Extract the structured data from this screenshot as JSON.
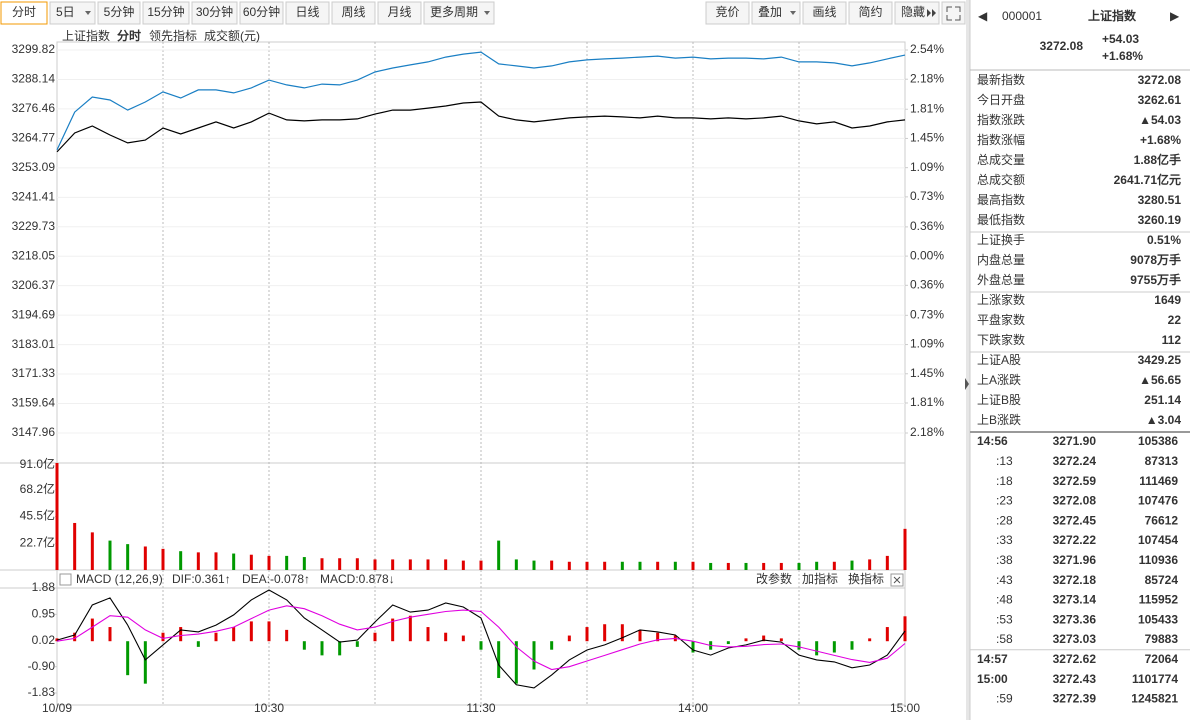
{
  "toolbar": {
    "periods": [
      "分时",
      "5日",
      "5分钟",
      "15分钟",
      "30分钟",
      "60分钟",
      "日线",
      "周线",
      "月线",
      "更多周期"
    ],
    "tools": [
      "竞价",
      "叠加",
      "画线",
      "简约",
      "隐藏"
    ]
  },
  "chart_data": [
    {
      "type": "line",
      "title": "上证指数",
      "volume_label": "成交额(元)",
      "series": [
        {
          "name": "分时",
          "color": "#000000",
          "values": [
            3259.4,
            3266.9,
            3269.7,
            3266.1,
            3263.0,
            3264.1,
            3268.9,
            3266.5,
            3268.9,
            3271.3,
            3268.9,
            3271.3,
            3274.8,
            3272.1,
            3271.7,
            3272.1,
            3272.1,
            3272.5,
            3274.4,
            3276.0,
            3276.0,
            3276.8,
            3277.6,
            3278.8,
            3279.2,
            3273.6,
            3272.1,
            3271.3,
            3272.1,
            3272.9,
            3273.3,
            3273.6,
            3273.3,
            3272.9,
            3273.6,
            3272.9,
            3272.9,
            3272.5,
            3272.9,
            3272.5,
            3272.9,
            3273.6,
            3271.7,
            3270.5,
            3271.3,
            3268.9,
            3269.7,
            3271.3,
            3272.1
          ]
        },
        {
          "name": "领先指标",
          "color": "#1a7fc4",
          "values": [
            3260.2,
            3275.2,
            3281.2,
            3280.0,
            3276.0,
            3279.2,
            3283.2,
            3280.8,
            3284.0,
            3284.0,
            3282.8,
            3284.8,
            3287.9,
            3286.0,
            3284.8,
            3286.3,
            3286.0,
            3287.9,
            3291.1,
            3292.7,
            3293.9,
            3295.1,
            3297.0,
            3298.2,
            3299.0,
            3294.3,
            3293.5,
            3292.7,
            3293.5,
            3295.1,
            3295.9,
            3296.3,
            3296.6,
            3297.0,
            3297.4,
            3296.6,
            3297.0,
            3296.3,
            3296.6,
            3296.6,
            3296.3,
            3297.0,
            3295.1,
            3295.1,
            3294.7,
            3293.5,
            3294.7,
            3296.3,
            3297.8
          ]
        }
      ],
      "ylim": [
        3147.96,
        3299.82
      ],
      "yticks": [
        3299.82,
        3288.14,
        3276.46,
        3264.77,
        3253.09,
        3241.41,
        3229.73,
        3218.05,
        3206.37,
        3194.69,
        3183.01,
        3171.33,
        3159.64,
        3147.96
      ],
      "y2lim": [
        -2.18,
        2.54
      ],
      "y2ticks": [
        {
          "value": 2.54,
          "label": "2.54%"
        },
        {
          "value": 2.18,
          "label": "2.18%"
        },
        {
          "value": 1.81,
          "label": "1.81%"
        },
        {
          "value": 1.45,
          "label": "1.45%"
        },
        {
          "value": 1.09,
          "label": "1.09%"
        },
        {
          "value": 0.73,
          "label": "0.73%"
        },
        {
          "value": 0.36,
          "label": "0.36%"
        },
        {
          "value": 0,
          "label": "0.00%"
        },
        {
          "value": -0.36,
          "label": "0.36%"
        },
        {
          "value": -0.73,
          "label": "0.73%"
        },
        {
          "value": -1.09,
          "label": "1.09%"
        },
        {
          "value": -1.45,
          "label": "1.45%"
        },
        {
          "value": -1.81,
          "label": "1.81%"
        },
        {
          "value": -2.18,
          "label": "2.18%"
        }
      ]
    },
    {
      "type": "bar",
      "color": "#e00000",
      "values": [
        91.0,
        40,
        32,
        25,
        22,
        20,
        18,
        16,
        15,
        15,
        14,
        13,
        12,
        12,
        11,
        10,
        10,
        10,
        9,
        9,
        9,
        9,
        9,
        8,
        8,
        25,
        9,
        8,
        8,
        7,
        7,
        7,
        7,
        7,
        7,
        7,
        7,
        6,
        6,
        6,
        6,
        6,
        6,
        7,
        7,
        8,
        9,
        12,
        35
      ],
      "ylim": [
        0,
        91.0
      ],
      "yticks": [
        {
          "value": 91.0,
          "label": "91.0亿"
        },
        {
          "value": 68.2,
          "label": "68.2亿"
        },
        {
          "value": 45.5,
          "label": "45.5亿"
        },
        {
          "value": 22.7,
          "label": "22.7亿"
        }
      ]
    },
    {
      "type": "macd",
      "title": "MACD (12,26,9)",
      "readouts": [
        "DIF:0.361↑",
        "DEA:-0.078↑",
        "MACD:0.878↓"
      ],
      "actions": [
        "改参数",
        "加指标",
        "换指标"
      ],
      "categories": [
        "10/09",
        null,
        null,
        null,
        null,
        null,
        null,
        null,
        null,
        null,
        null,
        null,
        "10:30",
        null,
        null,
        null,
        null,
        null,
        null,
        null,
        null,
        null,
        null,
        null,
        "11:30",
        null,
        null,
        null,
        null,
        null,
        null,
        null,
        null,
        null,
        null,
        null,
        "14:00",
        null,
        null,
        null,
        null,
        null,
        null,
        null,
        null,
        null,
        null,
        null,
        "15:00"
      ],
      "series": [
        {
          "name": "DIF",
          "color": "#000000",
          "values": [
            0.04,
            0.22,
            1.28,
            1.53,
            0.57,
            -0.66,
            -0.13,
            0.4,
            0.33,
            0.57,
            0.93,
            1.46,
            1.81,
            1.46,
            0.82,
            0.4,
            -0.03,
            0.04,
            0.68,
            1.28,
            1.03,
            1.1,
            1.35,
            1.21,
            0.82,
            -0.84,
            -1.54,
            -1.65,
            -1.19,
            -0.66,
            -0.31,
            -0.13,
            0.12,
            0.4,
            0.33,
            0.22,
            -0.31,
            -0.49,
            -0.24,
            -0.13,
            0.04,
            -0.03,
            -0.49,
            -0.66,
            -0.73,
            -0.94,
            -0.84,
            -0.49,
            0.36
          ]
        },
        {
          "name": "DEA",
          "color": "#e000e0",
          "values": [
            0.0,
            0.1,
            0.5,
            0.9,
            0.85,
            0.4,
            0.1,
            0.2,
            0.25,
            0.35,
            0.5,
            0.8,
            1.1,
            1.25,
            1.15,
            0.9,
            0.6,
            0.4,
            0.5,
            0.7,
            0.85,
            0.95,
            1.05,
            1.1,
            1.05,
            0.5,
            -0.2,
            -0.7,
            -1.0,
            -0.9,
            -0.7,
            -0.5,
            -0.3,
            -0.1,
            0.05,
            0.1,
            0.0,
            -0.15,
            -0.2,
            -0.18,
            -0.12,
            -0.1,
            -0.2,
            -0.35,
            -0.5,
            -0.65,
            -0.75,
            -0.6,
            -0.08
          ]
        },
        {
          "name": "MACD",
          "type": "bar",
          "values": [
            0.1,
            0.3,
            0.8,
            0.5,
            -1.2,
            -1.5,
            0.3,
            0.5,
            -0.2,
            0.3,
            0.5,
            0.7,
            0.7,
            0.4,
            -0.3,
            -0.5,
            -0.5,
            -0.2,
            0.3,
            0.8,
            0.9,
            0.5,
            0.3,
            0.2,
            -0.3,
            -1.3,
            -1.5,
            -1.0,
            -0.3,
            0.2,
            0.5,
            0.6,
            0.6,
            0.4,
            0.3,
            0.2,
            -0.4,
            -0.3,
            -0.1,
            0.1,
            0.2,
            0.1,
            -0.3,
            -0.5,
            -0.4,
            -0.3,
            0.1,
            0.5,
            0.88
          ]
        }
      ],
      "ylim": [
        -1.83,
        1.88
      ],
      "yticks": [
        1.88,
        0.95,
        0.02,
        {
          "value": -0.9,
          "label": "-0.90"
        },
        -1.83
      ]
    }
  ],
  "quote": {
    "code": "000001",
    "name": "上证指数",
    "price": "3272.08",
    "change": "+54.03",
    "percent": "+1.68%",
    "stats": [
      [
        [
          "最新指数",
          "3272.08",
          "red"
        ],
        [
          "今日开盘",
          "3262.61",
          "red"
        ],
        [
          "指数涨跌",
          "▲54.03",
          "red"
        ],
        [
          "指数涨幅",
          "+1.68%",
          "red"
        ],
        [
          "总成交量",
          "1.88亿手",
          "black"
        ],
        [
          "总成交额",
          "2641.71亿元",
          "blue"
        ],
        [
          "最高指数",
          "3280.51",
          "red"
        ],
        [
          "最低指数",
          "3260.19",
          "red"
        ]
      ],
      [
        [
          "上证换手",
          "0.51%",
          "black"
        ],
        [
          "内盘总量",
          "9078万手",
          "green"
        ],
        [
          "外盘总量",
          "9755万手",
          "red"
        ]
      ],
      [
        [
          "上涨家数",
          "1649",
          "red"
        ],
        [
          "平盘家数",
          "22",
          "black"
        ],
        [
          "下跌家数",
          "112",
          "green"
        ]
      ],
      [
        [
          "上证A股",
          "3429.25",
          "red"
        ],
        [
          "上A涨跌",
          "▲56.65",
          "red"
        ],
        [
          "上证B股",
          "251.14",
          "red"
        ],
        [
          "上B涨跌",
          "▲3.04",
          "red"
        ]
      ]
    ],
    "ticks": [
      [
        "14:56",
        "3271.90",
        "105386",
        "green"
      ],
      [
        ":13",
        "3272.24",
        "87313",
        "red"
      ],
      [
        ":18",
        "3272.59",
        "111469",
        "red"
      ],
      [
        ":23",
        "3272.08",
        "107476",
        "green"
      ],
      [
        ":28",
        "3272.45",
        "76612",
        "red"
      ],
      [
        ":33",
        "3272.22",
        "107454",
        "green"
      ],
      [
        ":38",
        "3271.96",
        "110936",
        "green"
      ],
      [
        ":43",
        "3272.18",
        "85724",
        "red"
      ],
      [
        ":48",
        "3273.14",
        "115952",
        "red"
      ],
      [
        ":53",
        "3273.36",
        "105433",
        "red"
      ],
      [
        ":58",
        "3273.03",
        "79883",
        "green"
      ],
      [
        "14:57",
        "3272.62",
        "72064",
        "green"
      ],
      [
        "15:00",
        "3272.43",
        "1101774",
        "green"
      ],
      [
        ":59",
        "3272.39",
        "1245821",
        "green"
      ]
    ]
  }
}
